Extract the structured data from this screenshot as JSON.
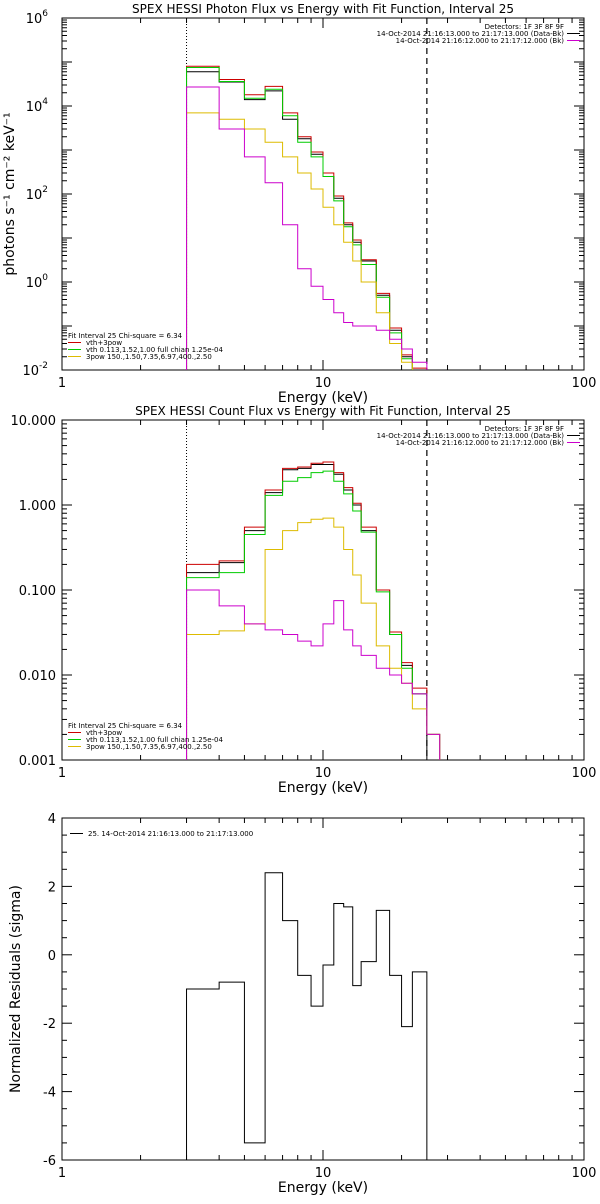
{
  "chart_data": [
    {
      "type": "line",
      "step": true,
      "title": "SPEX HESSI Photon Flux vs Energy with Fit Function, Interval 25",
      "xlabel": "Energy (keV)",
      "ylabel": "photons s⁻¹ cm⁻² keV⁻¹",
      "xscale": "log",
      "yscale": "log",
      "xlim": [
        1,
        100
      ],
      "ylim": [
        0.01,
        1000000
      ],
      "x_ticks": [
        {
          "v": 1,
          "label": "1"
        },
        {
          "v": 10,
          "label": "10"
        },
        {
          "v": 100,
          "label": "100"
        }
      ],
      "y_ticks": [
        {
          "v": 0.01,
          "label": "10",
          "exp": "-2"
        },
        {
          "v": 1,
          "label": "10",
          "exp": "0"
        },
        {
          "v": 100,
          "label": "10",
          "exp": "2"
        },
        {
          "v": 10000,
          "label": "10",
          "exp": "4"
        },
        {
          "v": 1000000,
          "label": "10",
          "exp": "6"
        }
      ],
      "vlines": [
        {
          "x": 3,
          "style": "dotted"
        },
        {
          "x": 25,
          "style": "dashed"
        }
      ],
      "legend_topright": [
        {
          "text": "Detectors: 1F 3F 8F 9F",
          "color": ""
        },
        {
          "text": "14-Oct-2014 21:16:13.000 to 21:17:13.000 (Data-Bk)",
          "color": "#000000"
        },
        {
          "text": "14-Oct-2014 21:16:12.000 to 21:17:12.000 (Bk)",
          "color": "#cc00cc"
        }
      ],
      "legend_bottomleft": [
        {
          "text": "Fit Interval 25   Chi-square = 6.34",
          "color": ""
        },
        {
          "text": "vth+3pow",
          "color": "#cc0000"
        },
        {
          "text": "vth 0.113,1.52,1.00  full chian 1.25e-04",
          "color": "#00cc00"
        },
        {
          "text": "3pow 150.,1.50,7.35,6.97,400.,2.50",
          "color": "#ddbb00"
        }
      ],
      "edges": [
        3,
        4,
        5,
        6,
        7,
        8,
        9,
        10,
        11,
        12,
        13,
        14,
        16,
        18,
        20,
        22,
        25,
        28
      ],
      "series": [
        {
          "name": "Data-Bk",
          "color": "#000000",
          "values": [
            60000,
            35000,
            14000,
            22000,
            5000,
            1800,
            800,
            250,
            80,
            20,
            8,
            3,
            0.5,
            0.08,
            0.02,
            0.01,
            null
          ]
        },
        {
          "name": "vth+3pow",
          "color": "#cc0000",
          "values": [
            80000,
            40000,
            18000,
            28000,
            7000,
            2000,
            900,
            300,
            90,
            22,
            9,
            3.2,
            0.55,
            0.09,
            0.022,
            0.011,
            0.005
          ]
        },
        {
          "name": "vth",
          "color": "#00cc00",
          "values": [
            75000,
            36000,
            15000,
            24000,
            6000,
            1500,
            700,
            250,
            70,
            18,
            7,
            2.5,
            0.45,
            0.07,
            0.018,
            0.009,
            0.004
          ]
        },
        {
          "name": "3pow",
          "color": "#ddbb00",
          "values": [
            7000,
            5000,
            3000,
            1500,
            700,
            300,
            130,
            50,
            20,
            8,
            3,
            1,
            0.2,
            0.04,
            0.015,
            0.008,
            0.004
          ]
        },
        {
          "name": "Bk",
          "color": "#cc00cc",
          "values": [
            27000,
            3000,
            700,
            180,
            20,
            2,
            0.8,
            0.4,
            0.2,
            0.12,
            0.1,
            0.1,
            0.08,
            0.05,
            0.03,
            0.015,
            0.008
          ]
        }
      ]
    },
    {
      "type": "line",
      "step": true,
      "title": "SPEX HESSI Count Flux vs Energy with Fit Function, Interval 25",
      "xlabel": "Energy (keV)",
      "ylabel": "",
      "xscale": "log",
      "yscale": "log",
      "xlim": [
        1,
        100
      ],
      "ylim": [
        0.001,
        10
      ],
      "x_ticks": [
        {
          "v": 1,
          "label": "1"
        },
        {
          "v": 10,
          "label": "10"
        },
        {
          "v": 100,
          "label": "100"
        }
      ],
      "y_ticks": [
        {
          "v": 0.001,
          "label": "0.001"
        },
        {
          "v": 0.01,
          "label": "0.010"
        },
        {
          "v": 0.1,
          "label": "0.100"
        },
        {
          "v": 1,
          "label": "1.000"
        },
        {
          "v": 10,
          "label": "10.000"
        }
      ],
      "vlines": [
        {
          "x": 3,
          "style": "dotted"
        },
        {
          "x": 25,
          "style": "dashed"
        }
      ],
      "legend_topright": [
        {
          "text": "Detectors: 1F 3F 8F 9F",
          "color": ""
        },
        {
          "text": "14-Oct-2014 21:16:13.000 to 21:17:13.000 (Data-Bk)",
          "color": "#000000"
        },
        {
          "text": "14-Oct-2014 21:16:12.000 to 21:17:12.000 (Bk)",
          "color": "#cc00cc"
        }
      ],
      "legend_bottomleft": [
        {
          "text": "Fit Interval 25   Chi-square = 6.34",
          "color": ""
        },
        {
          "text": "vth+3pow",
          "color": "#cc0000"
        },
        {
          "text": "vth 0.113,1.52,1.00  full chian 1.25e-04",
          "color": "#00cc00"
        },
        {
          "text": "3pow 150.,1.50,7.35,6.97,400.,2.50",
          "color": "#ddbb00"
        }
      ],
      "edges": [
        3,
        4,
        5,
        6,
        7,
        8,
        9,
        10,
        11,
        12,
        13,
        14,
        16,
        18,
        20,
        22,
        25,
        28
      ],
      "series": [
        {
          "name": "Data-Bk",
          "color": "#000000",
          "values": [
            0.16,
            0.21,
            0.5,
            1.4,
            2.6,
            2.7,
            3.0,
            3.0,
            2.3,
            1.5,
            1.0,
            0.5,
            0.1,
            0.03,
            0.013,
            0.006,
            null
          ]
        },
        {
          "name": "vth+3pow",
          "color": "#cc0000",
          "values": [
            0.2,
            0.22,
            0.55,
            1.5,
            2.7,
            2.8,
            3.1,
            3.2,
            2.4,
            1.6,
            1.05,
            0.55,
            0.1,
            0.032,
            0.014,
            0.007,
            0.002
          ]
        },
        {
          "name": "vth",
          "color": "#00cc00",
          "values": [
            0.14,
            0.16,
            0.45,
            1.3,
            1.9,
            2.1,
            2.4,
            2.5,
            1.9,
            1.35,
            0.85,
            0.48,
            0.095,
            0.03,
            0.012,
            0.006,
            0.002
          ]
        },
        {
          "name": "3pow",
          "color": "#ddbb00",
          "values": [
            0.03,
            0.033,
            0.04,
            0.3,
            0.5,
            0.62,
            0.68,
            0.7,
            0.55,
            0.3,
            0.15,
            0.07,
            0.022,
            0.012,
            0.008,
            0.004,
            0.002
          ]
        },
        {
          "name": "Bk",
          "color": "#cc00cc",
          "values": [
            0.1,
            0.065,
            0.04,
            0.034,
            0.03,
            0.025,
            0.022,
            0.04,
            0.075,
            0.034,
            0.022,
            0.017,
            0.012,
            0.01,
            0.008,
            0.006,
            0.002
          ]
        }
      ]
    },
    {
      "type": "line",
      "step": true,
      "title": "",
      "xlabel": "Energy (keV)",
      "ylabel": "Normalized Residuals (sigma)",
      "xscale": "log",
      "yscale": "linear",
      "xlim": [
        1,
        100
      ],
      "ylim": [
        -6,
        4
      ],
      "x_ticks": [
        {
          "v": 1,
          "label": "1"
        },
        {
          "v": 10,
          "label": "10"
        },
        {
          "v": 100,
          "label": "100"
        }
      ],
      "y_ticks": [
        {
          "v": -6,
          "label": "-6"
        },
        {
          "v": -4,
          "label": "-4"
        },
        {
          "v": -2,
          "label": "-2"
        },
        {
          "v": 0,
          "label": "0"
        },
        {
          "v": 2,
          "label": "2"
        },
        {
          "v": 4,
          "label": "4"
        }
      ],
      "legend_topleft": [
        {
          "text": "25. 14-Oct-2014 21:16:13.000 to 21:17:13.000",
          "color": "#000000"
        }
      ],
      "edges": [
        3,
        4,
        5,
        6,
        7,
        8,
        9,
        10,
        11,
        12,
        13,
        14,
        16,
        18,
        20,
        22,
        25
      ],
      "series": [
        {
          "name": "",
          "color": "#000000",
          "values": [
            -1.0,
            -0.8,
            -5.5,
            2.4,
            1.0,
            -0.6,
            -1.5,
            -0.3,
            1.5,
            1.4,
            -0.9,
            -0.2,
            1.3,
            -0.6,
            -2.1,
            -0.5
          ]
        }
      ]
    }
  ]
}
